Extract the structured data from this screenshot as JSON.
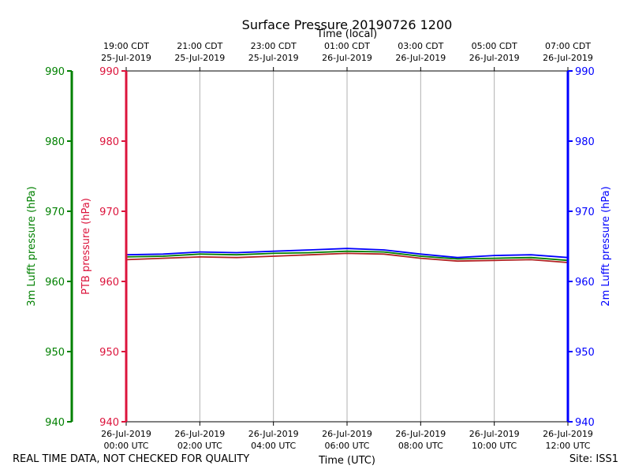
{
  "chart_data": {
    "type": "line",
    "title": "Surface Pressure 20190726 1200",
    "xlabel_bottom": "Time (UTC)",
    "xlabel_top": "Time (local)",
    "x_range_hours_utc": [
      0,
      12
    ],
    "grid": true,
    "bottom_ticks": [
      {
        "hour": 0,
        "date": "26-Jul-2019",
        "time": "00:00 UTC"
      },
      {
        "hour": 2,
        "date": "26-Jul-2019",
        "time": "02:00 UTC"
      },
      {
        "hour": 4,
        "date": "26-Jul-2019",
        "time": "04:00 UTC"
      },
      {
        "hour": 6,
        "date": "26-Jul-2019",
        "time": "06:00 UTC"
      },
      {
        "hour": 8,
        "date": "26-Jul-2019",
        "time": "08:00 UTC"
      },
      {
        "hour": 10,
        "date": "26-Jul-2019",
        "time": "10:00 UTC"
      },
      {
        "hour": 12,
        "date": "26-Jul-2019",
        "time": "12:00 UTC"
      }
    ],
    "top_ticks": [
      {
        "hour": 0,
        "time": "19:00 CDT",
        "date": "25-Jul-2019"
      },
      {
        "hour": 2,
        "time": "21:00 CDT",
        "date": "25-Jul-2019"
      },
      {
        "hour": 4,
        "time": "23:00 CDT",
        "date": "25-Jul-2019"
      },
      {
        "hour": 6,
        "time": "01:00 CDT",
        "date": "26-Jul-2019"
      },
      {
        "hour": 8,
        "time": "03:00 CDT",
        "date": "26-Jul-2019"
      },
      {
        "hour": 10,
        "time": "05:00 CDT",
        "date": "26-Jul-2019"
      },
      {
        "hour": 12,
        "time": "07:00 CDT",
        "date": "26-Jul-2019"
      }
    ],
    "y_axes": [
      {
        "id": "ptb",
        "label": "PTB pressure (hPa)",
        "color": "#dc143c",
        "ylim": [
          940,
          990
        ],
        "ticks": [
          940,
          950,
          960,
          970,
          980,
          990
        ]
      },
      {
        "id": "lufft3m",
        "label": "3m Lufft pressure (hPa)",
        "color": "#008000",
        "ylim": [
          940,
          990
        ],
        "ticks": [
          940,
          950,
          960,
          970,
          980,
          990
        ]
      },
      {
        "id": "lufft2m",
        "label": "2m Lufft pressure (hPa)",
        "color": "#0000ff",
        "ylim": [
          940,
          990
        ],
        "ticks": [
          940,
          950,
          960,
          970,
          980,
          990
        ]
      }
    ],
    "x": [
      0,
      1,
      2,
      3,
      4,
      5,
      6,
      7,
      8,
      9,
      10,
      11,
      12
    ],
    "series": [
      {
        "axis": "lufft2m",
        "color": "#0000ff",
        "values": [
          963.8,
          963.9,
          964.2,
          964.1,
          964.3,
          964.5,
          964.7,
          964.5,
          963.9,
          963.4,
          963.7,
          963.8,
          963.4
        ]
      },
      {
        "axis": "lufft3m",
        "color": "#008000",
        "values": [
          963.5,
          963.6,
          963.9,
          963.8,
          964.0,
          964.1,
          964.3,
          964.2,
          963.6,
          963.2,
          963.3,
          963.4,
          963.0
        ]
      },
      {
        "axis": "ptb",
        "color": "#b22222",
        "values": [
          963.1,
          963.3,
          963.5,
          963.4,
          963.6,
          963.8,
          964.0,
          963.9,
          963.3,
          962.9,
          963.0,
          963.1,
          962.7
        ]
      }
    ]
  },
  "footer": {
    "left": "REAL TIME DATA, NOT CHECKED FOR QUALITY",
    "right": "Site: ISS1"
  }
}
